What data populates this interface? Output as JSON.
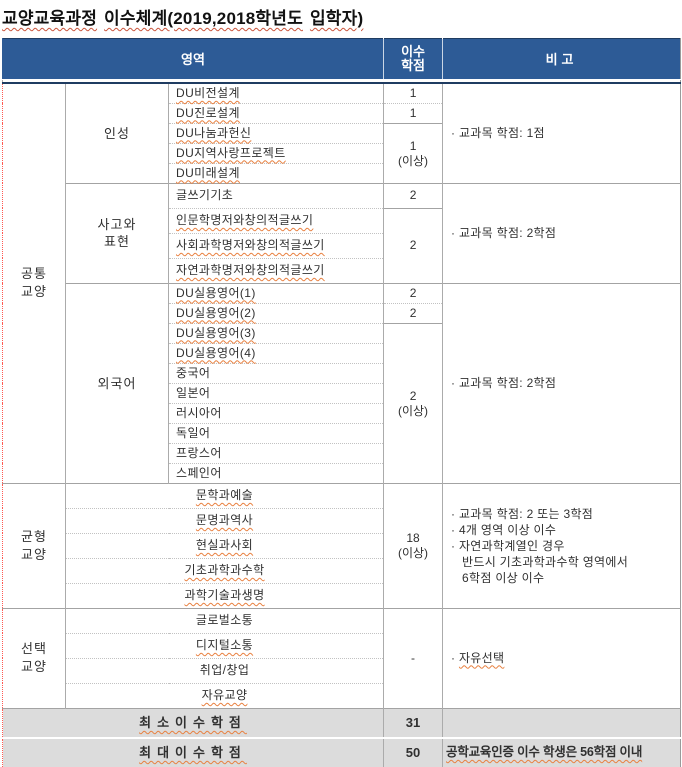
{
  "title": {
    "parts": [
      "교양교육과정",
      "이수체계(2019,2018학년도",
      "입학자)"
    ]
  },
  "header": {
    "area": "영역",
    "credits": [
      "이수",
      "학점"
    ],
    "note": "비고"
  },
  "sections": {
    "common": {
      "group": [
        "공통",
        "교양"
      ],
      "character": {
        "label": "인성",
        "courses": [
          {
            "name": "DU비전설계",
            "credit": "1"
          },
          {
            "name": "DU진로설계",
            "credit": "1"
          },
          {
            "name": "DU나눔과헌신"
          },
          {
            "name": "DU지역사랑프로젝트"
          },
          {
            "name": "DU미래설계"
          }
        ],
        "merged_credit": {
          "value": "1",
          "qualifier": "(이상)"
        },
        "remark": "· 교과목 학점: 1점"
      },
      "thinking": {
        "label": [
          "사고와",
          "표현"
        ],
        "courses": [
          {
            "name": "글쓰기기초",
            "credit": "2"
          },
          {
            "name": "인문학명저와창의적글쓰기"
          },
          {
            "name": "사회과학명저와창의적글쓰기"
          },
          {
            "name": "자연과학명저와창의적글쓰기"
          }
        ],
        "merged_credit": {
          "value": "2"
        },
        "remark": "· 교과목 학점: 2학점"
      },
      "foreign": {
        "label": "외국어",
        "courses": [
          {
            "name": "DU실용영어(1)",
            "credit": "2"
          },
          {
            "name": "DU실용영어(2)",
            "credit": "2"
          },
          {
            "name": "DU실용영어(3)"
          },
          {
            "name": "DU실용영어(4)"
          },
          {
            "name": "중국어"
          },
          {
            "name": "일본어"
          },
          {
            "name": "러시아어"
          },
          {
            "name": "독일어"
          },
          {
            "name": "프랑스어"
          },
          {
            "name": "스페인어"
          }
        ],
        "merged_credit": {
          "value": "2",
          "qualifier": "(이상)"
        },
        "remark": "· 교과목 학점: 2학점"
      }
    },
    "balance": {
      "group": [
        "균형",
        "교양"
      ],
      "courses": [
        {
          "name": "문학과예술"
        },
        {
          "name": "문명과역사"
        },
        {
          "name": "현실과사회"
        },
        {
          "name": "기초과학과수학"
        },
        {
          "name": "과학기술과생명"
        }
      ],
      "merged_credit": {
        "value": "18",
        "qualifier": "(이상)"
      },
      "remarks": [
        {
          "text": "· 교과목 학점: 2 또는 3학점"
        },
        {
          "text": "· 4개 영역 이상 이수"
        },
        {
          "text": "· 자연과학계열인 경우"
        },
        {
          "text": "반드시 기초과학과수학 영역에서",
          "indent": true
        },
        {
          "text": "6학점 이상 이수",
          "indent": true
        }
      ]
    },
    "elective": {
      "group": [
        "선택",
        "교양"
      ],
      "courses": [
        {
          "name": "글로벌소통"
        },
        {
          "name": "디지털소통"
        },
        {
          "name": "취업/창업"
        },
        {
          "name": "자유교양"
        }
      ],
      "merged_credit": {
        "value": "-"
      },
      "remark": {
        "bullet": "·",
        "text": "자유선택"
      }
    }
  },
  "footer": {
    "min": {
      "label": "최소이수학점",
      "credit": "31",
      "remark": ""
    },
    "max": {
      "label": "최대이수학점",
      "credit": "50",
      "remark": "공학교육인증 이수 학생은 56학점 이내"
    }
  }
}
